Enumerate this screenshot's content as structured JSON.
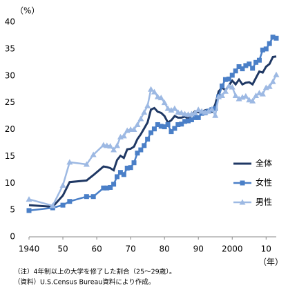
{
  "chart_data": {
    "type": "line",
    "y_label": "（%）",
    "x_label": "（年）",
    "notes": [
      "（注）4年制以上の大学を修了した割合（25～29歳）。",
      "（資料）U.S.Census Bureau資料により作成。"
    ],
    "x": [
      1940,
      1947,
      1950,
      1952,
      1957,
      1959,
      1962,
      1963,
      1964,
      1965,
      1966,
      1967,
      1968,
      1969,
      1970,
      1971,
      1972,
      1973,
      1974,
      1975,
      1976,
      1977,
      1978,
      1979,
      1980,
      1981,
      1982,
      1983,
      1984,
      1985,
      1986,
      1987,
      1988,
      1989,
      1990,
      1991,
      1992,
      1993,
      1994,
      1995,
      1996,
      1997,
      1998,
      1999,
      2000,
      2001,
      2002,
      2003,
      2004,
      2005,
      2006,
      2007,
      2008,
      2009,
      2010,
      2011,
      2012,
      2013
    ],
    "series": [
      {
        "name": "全体",
        "color": "#1f3864",
        "marker": "none",
        "values": [
          5.9,
          5.6,
          7.7,
          10.2,
          10.5,
          11.5,
          13.1,
          13.0,
          12.8,
          12.4,
          14.3,
          15.1,
          14.7,
          16.3,
          16.4,
          16.8,
          18.2,
          19.1,
          20.2,
          21.3,
          23.7,
          24.0,
          23.3,
          23.1,
          22.5,
          21.3,
          21.7,
          22.5,
          22.2,
          22.2,
          22.4,
          22.0,
          22.7,
          23.4,
          23.2,
          23.2,
          23.6,
          23.7,
          23.3,
          24.7,
          27.1,
          27.8,
          27.3,
          28.2,
          29.1,
          28.4,
          29.3,
          28.4,
          28.7,
          28.8,
          28.4,
          29.6,
          30.8,
          30.6,
          31.7,
          32.2,
          33.5,
          33.6
        ]
      },
      {
        "name": "女性",
        "color": "#4a7fc7",
        "marker": "square",
        "values": [
          4.9,
          5.4,
          5.9,
          6.6,
          7.5,
          7.5,
          9.1,
          9.1,
          9.2,
          9.8,
          11.2,
          12.0,
          11.6,
          12.8,
          12.9,
          13.8,
          15.6,
          16.2,
          17.0,
          18.2,
          19.4,
          20.1,
          20.9,
          20.6,
          20.5,
          20.9,
          19.6,
          20.2,
          20.9,
          21.0,
          21.5,
          21.6,
          21.8,
          22.2,
          22.2,
          23.0,
          23.1,
          23.4,
          23.7,
          23.9,
          26.1,
          28.1,
          29.3,
          29.4,
          30.1,
          30.9,
          31.7,
          31.3,
          31.9,
          32.2,
          31.4,
          32.5,
          32.9,
          34.8,
          35.0,
          36.0,
          37.2,
          37.0
        ]
      },
      {
        "name": "男性",
        "color": "#9db9e3",
        "marker": "triangle",
        "values": [
          7.0,
          5.8,
          9.6,
          13.9,
          13.5,
          15.3,
          17.1,
          17.0,
          16.9,
          16.2,
          17.0,
          18.6,
          18.8,
          19.8,
          20.0,
          20.0,
          20.9,
          22.0,
          23.2,
          24.4,
          27.5,
          27.0,
          26.1,
          25.9,
          25.0,
          23.9,
          23.6,
          23.9,
          23.2,
          23.1,
          22.9,
          22.8,
          22.9,
          23.1,
          23.7,
          23.4,
          23.2,
          23.4,
          23.8,
          22.6,
          26.1,
          26.3,
          27.1,
          28.1,
          27.9,
          26.3,
          25.7,
          26.0,
          26.2,
          25.5,
          25.3,
          26.3,
          26.8,
          26.6,
          27.8,
          28.0,
          28.9,
          30.2
        ]
      }
    ],
    "xlim": [
      1940,
      2013
    ],
    "xticks": [
      1940,
      {
        "value": 1950,
        "label": "50"
      },
      {
        "value": 1960,
        "label": "60"
      },
      {
        "value": 1970,
        "label": "70"
      },
      {
        "value": 1980,
        "label": "80"
      },
      {
        "value": 1990,
        "label": "90"
      },
      2000,
      {
        "value": 2010,
        "label": "10"
      }
    ],
    "ylim": [
      0,
      40
    ],
    "yticks": [
      0,
      5,
      10,
      15,
      20,
      25,
      30,
      35,
      40
    ],
    "grid": false,
    "legend": "right"
  }
}
